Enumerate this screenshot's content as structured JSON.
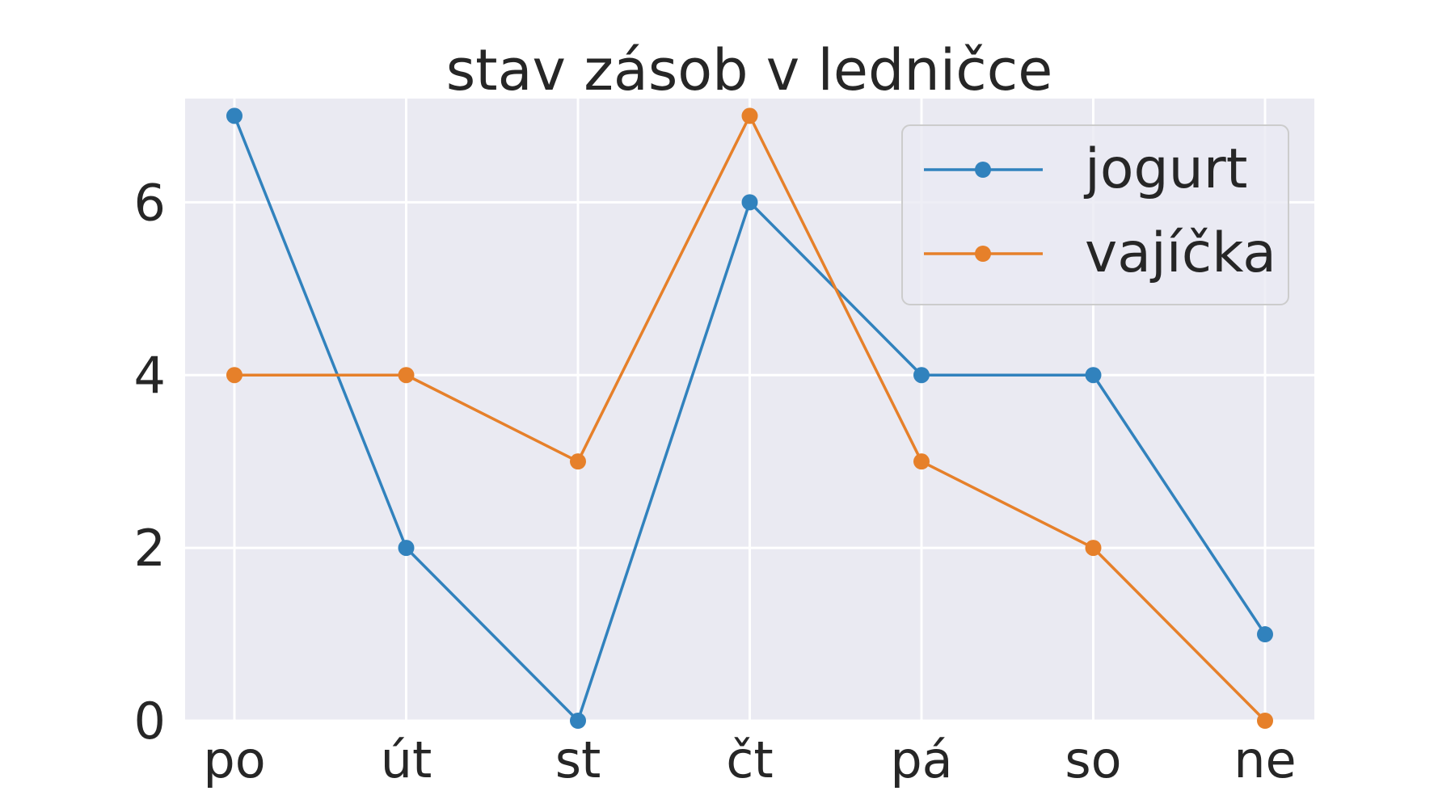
{
  "chart_data": {
    "type": "line",
    "title": "stav zásob v ledničce",
    "xlabel": "",
    "ylabel": "",
    "categories": [
      "po",
      "út",
      "st",
      "čt",
      "pá",
      "so",
      "ne"
    ],
    "ylim": [
      0,
      7.2
    ],
    "yticks": [
      0,
      2,
      4,
      6
    ],
    "grid": true,
    "legend_position": "top-right",
    "background": "#eaeaf2",
    "series": [
      {
        "name": "jogurt",
        "values": [
          7,
          2,
          0,
          6,
          4,
          4,
          1
        ],
        "color": "#3182bd",
        "marker": "circle"
      },
      {
        "name": "vajíčka",
        "values": [
          4,
          4,
          3,
          7,
          3,
          2,
          0
        ],
        "color": "#e6802a",
        "marker": "circle"
      }
    ]
  }
}
